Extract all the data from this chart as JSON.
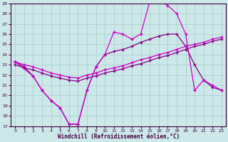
{
  "xlabel": "Windchill (Refroidissement éolien,°C)",
  "bg_color": "#cce8e8",
  "grid_color": "#aacccc",
  "line_color_dark": "#880088",
  "line_color_bright": "#cc00cc",
  "ylim": [
    17,
    29
  ],
  "xlim": [
    -0.5,
    23.5
  ],
  "yticks": [
    17,
    18,
    19,
    20,
    21,
    22,
    23,
    24,
    25,
    26,
    27,
    28,
    29
  ],
  "xticks": [
    0,
    1,
    2,
    3,
    4,
    5,
    6,
    7,
    8,
    9,
    10,
    11,
    12,
    13,
    14,
    15,
    16,
    17,
    18,
    19,
    20,
    21,
    22,
    23
  ],
  "line1_x": [
    0,
    1,
    2,
    3,
    4,
    5,
    6,
    7,
    8,
    9,
    10,
    11,
    12,
    13,
    14,
    15,
    16,
    17,
    18,
    19,
    20,
    21,
    22,
    23
  ],
  "line1_y": [
    23.3,
    22.8,
    21.9,
    20.5,
    19.5,
    18.8,
    17.2,
    17.2,
    20.5,
    22.8,
    24.0,
    24.3,
    24.5,
    24.8,
    25.2,
    25.5,
    25.8,
    26.0,
    26.0,
    24.8,
    23.0,
    21.5,
    20.8,
    20.5
  ],
  "line2_x": [
    0,
    1,
    2,
    3,
    4,
    5,
    6,
    7,
    8,
    9,
    10,
    11,
    12,
    13,
    14,
    15,
    16,
    17,
    18,
    19,
    20,
    21,
    22,
    23
  ],
  "line2_y": [
    23.3,
    23.0,
    22.8,
    22.5,
    22.2,
    22.0,
    21.8,
    21.7,
    22.0,
    22.2,
    22.5,
    22.7,
    22.9,
    23.2,
    23.5,
    23.7,
    24.0,
    24.2,
    24.5,
    24.8,
    25.0,
    25.2,
    25.5,
    25.7
  ],
  "line3_x": [
    0,
    1,
    2,
    3,
    4,
    5,
    6,
    7,
    8,
    9,
    10,
    11,
    12,
    13,
    14,
    15,
    16,
    17,
    18,
    19,
    20,
    21,
    22,
    23
  ],
  "line3_y": [
    23.0,
    22.7,
    22.5,
    22.2,
    21.9,
    21.7,
    21.5,
    21.4,
    21.7,
    21.9,
    22.2,
    22.4,
    22.6,
    22.9,
    23.1,
    23.4,
    23.7,
    23.9,
    24.2,
    24.5,
    24.8,
    25.0,
    25.3,
    25.5
  ],
  "line4_x": [
    0,
    2,
    3,
    4,
    5,
    6,
    7,
    8,
    9,
    10,
    11,
    12,
    13,
    14,
    15,
    16,
    17,
    18,
    19,
    20,
    21,
    22,
    23
  ],
  "line4_y": [
    23.3,
    21.9,
    20.5,
    19.5,
    18.8,
    17.2,
    17.2,
    20.5,
    22.8,
    24.0,
    26.2,
    26.0,
    25.5,
    26.0,
    29.2,
    29.3,
    28.8,
    28.0,
    26.0,
    20.5,
    21.5,
    21.0,
    20.5
  ]
}
